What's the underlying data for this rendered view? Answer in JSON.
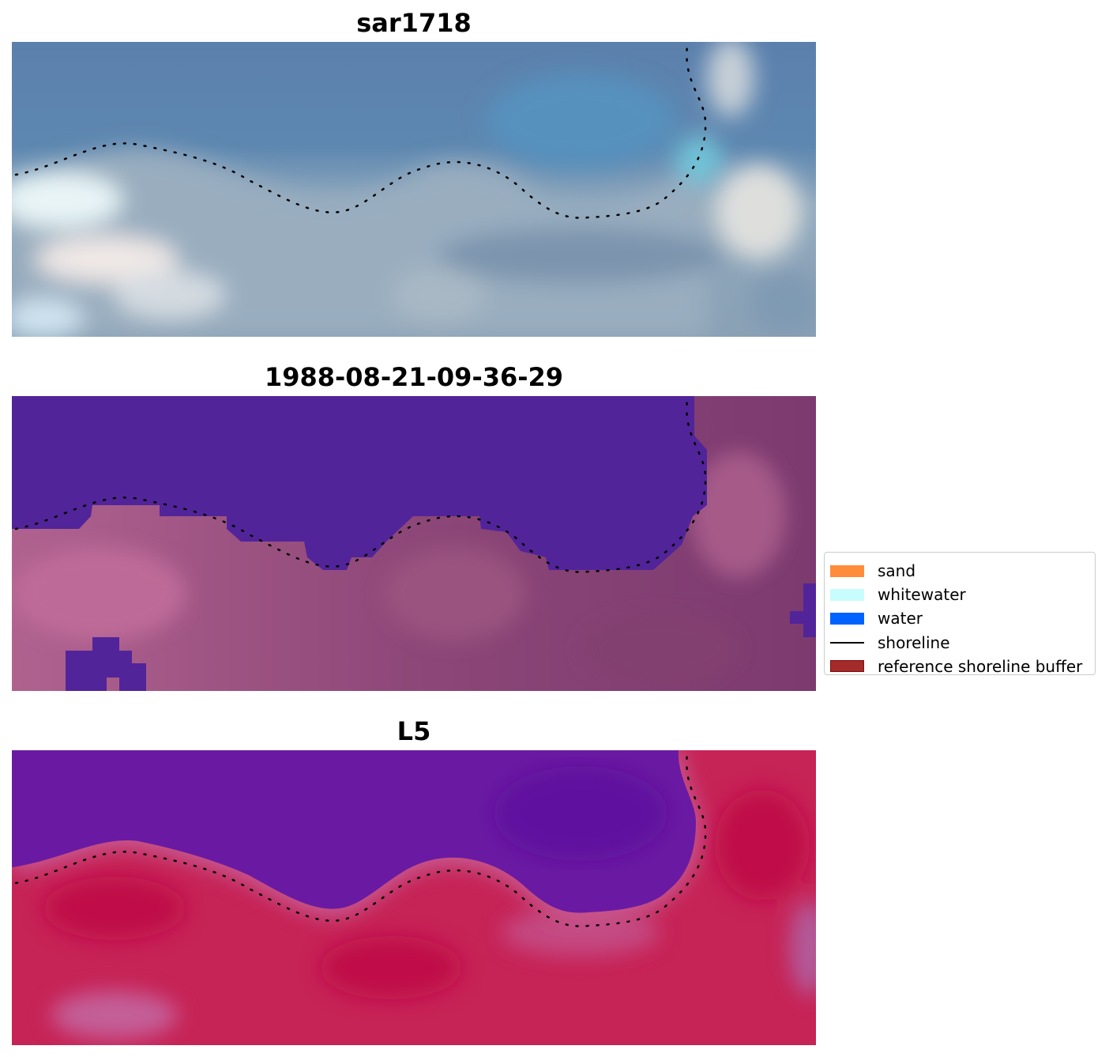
{
  "panels": [
    {
      "title": "sar1718",
      "kind": "rgb"
    },
    {
      "title": "1988-08-21-09-36-29",
      "kind": "classified"
    },
    {
      "title": "L5",
      "kind": "index"
    }
  ],
  "legend": {
    "items": [
      {
        "label": "sand",
        "color": "#ff8c3a",
        "type": "patch"
      },
      {
        "label": "whitewater",
        "color": "#c8fdfd",
        "type": "patch"
      },
      {
        "label": "water",
        "color": "#0062ff",
        "type": "patch"
      },
      {
        "label": "shoreline",
        "color": "#000000",
        "type": "line"
      },
      {
        "label": "reference shoreline buffer",
        "color": "#a52a2a",
        "edge": "#7a1010",
        "type": "patch"
      }
    ]
  }
}
